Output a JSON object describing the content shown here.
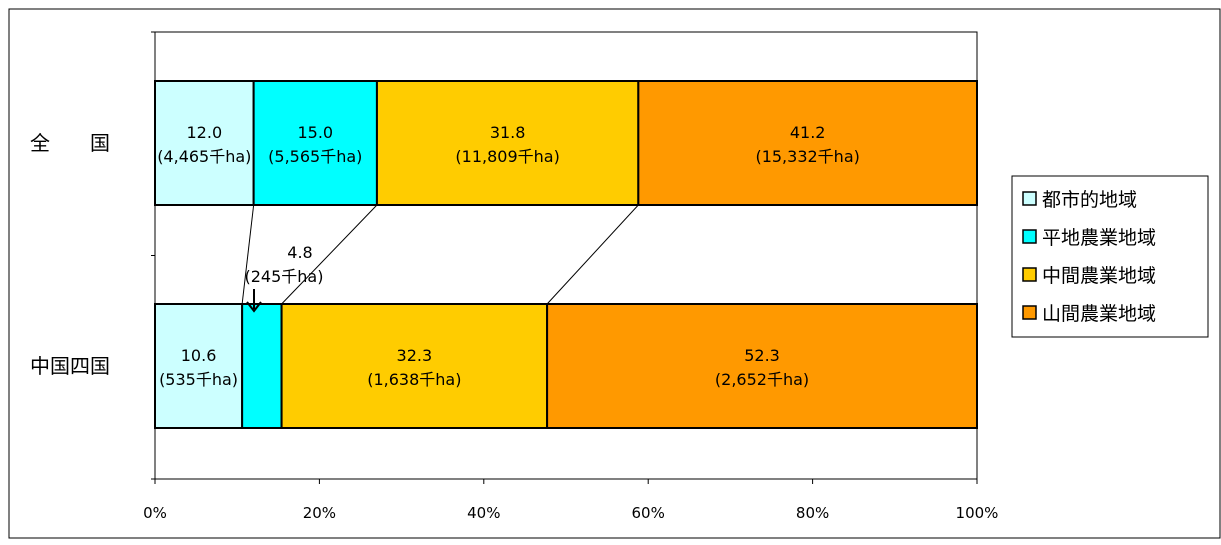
{
  "chart_data": {
    "type": "bar",
    "orientation": "horizontal",
    "stacked": true,
    "percent": true,
    "categories": [
      "全　　国",
      "中国四国"
    ],
    "xlim": [
      0,
      100
    ],
    "x_ticks": [
      "0%",
      "20%",
      "40%",
      "60%",
      "80%",
      "100%"
    ],
    "legend_position": "right",
    "series": [
      {
        "name": "都市的地域",
        "color": "#ccffff",
        "values": [
          12.0,
          10.6
        ],
        "labels": [
          "(4,465千ha)",
          "(535千ha)"
        ]
      },
      {
        "name": "平地農業地域",
        "color": "#00ffff",
        "values": [
          15.0,
          4.8
        ],
        "labels": [
          "(5,565千ha)",
          "(245千ha)"
        ]
      },
      {
        "name": "中間農業地域",
        "color": "#ffcc00",
        "values": [
          31.8,
          32.3
        ],
        "labels": [
          "(11,809千ha)",
          "(1,638千ha)"
        ]
      },
      {
        "name": "山間農業地域",
        "color": "#ff9900",
        "values": [
          41.2,
          52.3
        ],
        "labels": [
          "(15,332千ha)",
          "(2,652千ha)"
        ]
      }
    ]
  }
}
